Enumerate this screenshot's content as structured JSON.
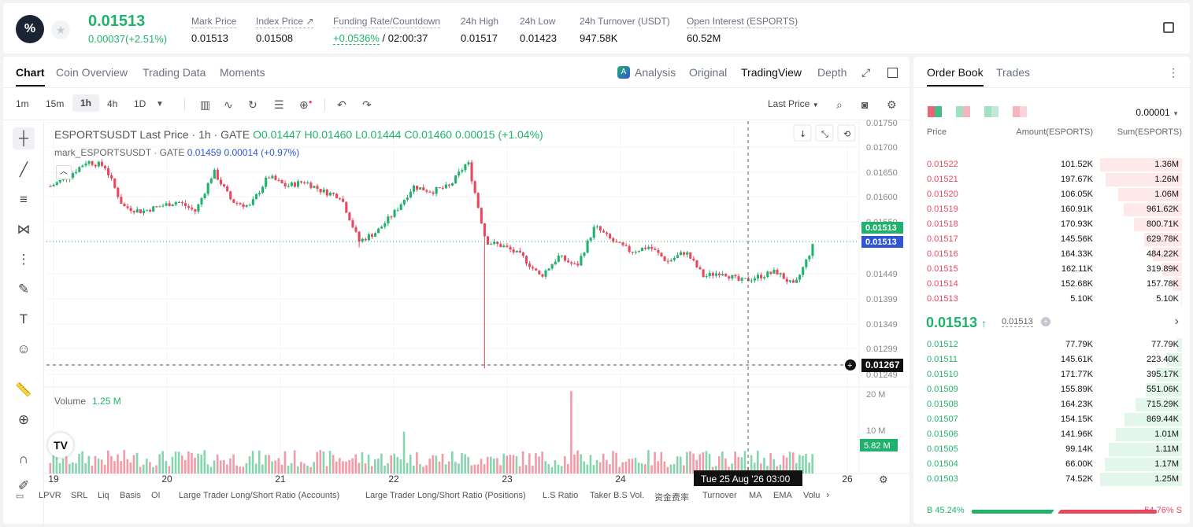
{
  "header": {
    "last_price": "0.01513",
    "change": "0.00037(+2.51%)",
    "stats": [
      {
        "label": "Mark Price",
        "value": "0.01513"
      },
      {
        "label": "Index Price ↗",
        "value": "0.01508"
      },
      {
        "label": "Funding Rate/Countdown",
        "value_green": "+0.0536%",
        "value": " / 02:00:37"
      },
      {
        "label": "24h High",
        "value": "0.01517"
      },
      {
        "label": "24h Low",
        "value": "0.01423"
      },
      {
        "label": "24h Turnover (USDT)",
        "value": "947.58K"
      },
      {
        "label": "Open Interest (ESPORTS)",
        "value": "60.52M"
      }
    ]
  },
  "chart_tabs": [
    "Chart",
    "Coin Overview",
    "Trading Data",
    "Moments"
  ],
  "chart_modes": {
    "analysis": "Analysis",
    "original": "Original",
    "tradingview": "TradingView",
    "depth": "Depth"
  },
  "timeframes": [
    "1m",
    "15m",
    "1h",
    "4h",
    "1D"
  ],
  "price_type": "Last Price",
  "legend": {
    "title": "ESPORTSUSDT Last Price · 1h · GATE",
    "o": "O0.01447",
    "h": "H0.01460",
    "l": "L0.01444",
    "c": "C0.01460",
    "chg": "0.00015 (+1.04%)",
    "mark_title": "mark_ESPORTSUSDT · GATE",
    "mark_val": "0.01459",
    "mark_chg": "0.00014 (+0.97%)"
  },
  "volume": {
    "label": "Volume",
    "value": "1.25 M"
  },
  "chart_data": {
    "type": "candlestick",
    "title": "ESPORTSUSDT Last Price · 1h · GATE",
    "y_ticks": [
      "0.01750",
      "0.01700",
      "0.01650",
      "0.01600",
      "0.01550",
      "0.01449",
      "0.01399",
      "0.01349",
      "0.01299",
      "0.01249"
    ],
    "y_labels": {
      "last": "0.01513",
      "mark": "0.01513",
      "crosshair": "0.01267"
    },
    "x_ticks": [
      "19",
      "20",
      "21",
      "22",
      "23",
      "24",
      "25",
      "26"
    ],
    "x_tooltip": "Tue 25 Aug '26   03:00",
    "volume_ticks": [
      "20 M",
      "10 M"
    ],
    "volume_current": "5.82 M",
    "ylim": [
      0.0123,
      0.0176
    ],
    "trend": [
      0.0163,
      0.0165,
      0.0168,
      0.0167,
      0.0159,
      0.0158,
      0.0159,
      0.016,
      0.0158,
      0.0166,
      0.016,
      0.0159,
      0.0165,
      0.0163,
      0.0164,
      0.0162,
      0.0161,
      0.0152,
      0.0154,
      0.0158,
      0.0163,
      0.0162,
      0.0163,
      0.0168,
      0.0152,
      0.0151,
      0.0149,
      0.0145,
      0.0149,
      0.0147,
      0.0155,
      0.0152,
      0.015,
      0.0151,
      0.0148,
      0.015,
      0.0145,
      0.0146,
      0.0144,
      0.0145,
      0.0146,
      0.0143,
      0.0151
    ],
    "spikes": [
      {
        "index": 24,
        "low": 0.01267
      },
      {
        "index": 17,
        "low": 0.01508
      }
    ]
  },
  "bottom_indicators": [
    "LPVR",
    "SRL",
    "Liq",
    "Basis",
    "OI",
    "Large Trader Long/Short Ratio (Accounts)",
    "Large Trader Long/Short Ratio (Positions)",
    "L.S Ratio",
    "Taker B.S Vol.",
    "资金费率",
    "Turnover",
    "MA",
    "EMA",
    "Volu"
  ],
  "orderbook": {
    "tabs": [
      "Order Book",
      "Trades"
    ],
    "precision": "0.00001",
    "headers": {
      "price": "Price",
      "amount": "Amount(ESPORTS)",
      "sum": "Sum(ESPORTS)"
    },
    "asks": [
      {
        "price": "0.01522",
        "amount": "101.52K",
        "sum": "1.36M",
        "fill": 1.0
      },
      {
        "price": "0.01521",
        "amount": "197.67K",
        "sum": "1.26M",
        "fill": 0.93
      },
      {
        "price": "0.01520",
        "amount": "106.05K",
        "sum": "1.06M",
        "fill": 0.78
      },
      {
        "price": "0.01519",
        "amount": "160.91K",
        "sum": "961.62K",
        "fill": 0.71
      },
      {
        "price": "0.01518",
        "amount": "170.93K",
        "sum": "800.71K",
        "fill": 0.59
      },
      {
        "price": "0.01517",
        "amount": "145.56K",
        "sum": "629.78K",
        "fill": 0.46
      },
      {
        "price": "0.01516",
        "amount": "164.33K",
        "sum": "484.22K",
        "fill": 0.36
      },
      {
        "price": "0.01515",
        "amount": "162.11K",
        "sum": "319.89K",
        "fill": 0.24
      },
      {
        "price": "0.01514",
        "amount": "152.68K",
        "sum": "157.78K",
        "fill": 0.12
      },
      {
        "price": "0.01513",
        "amount": "5.10K",
        "sum": "5.10K",
        "fill": 0.01
      }
    ],
    "mid": {
      "price": "0.01513",
      "arrow": "↑",
      "mark": "0.01513"
    },
    "bids": [
      {
        "price": "0.01512",
        "amount": "77.79K",
        "sum": "77.79K",
        "fill": 0.06
      },
      {
        "price": "0.01511",
        "amount": "145.61K",
        "sum": "223.40K",
        "fill": 0.18
      },
      {
        "price": "0.01510",
        "amount": "171.77K",
        "sum": "395.17K",
        "fill": 0.32
      },
      {
        "price": "0.01509",
        "amount": "155.89K",
        "sum": "551.06K",
        "fill": 0.44
      },
      {
        "price": "0.01508",
        "amount": "164.23K",
        "sum": "715.29K",
        "fill": 0.57
      },
      {
        "price": "0.01507",
        "amount": "154.15K",
        "sum": "869.44K",
        "fill": 0.7
      },
      {
        "price": "0.01506",
        "amount": "141.96K",
        "sum": "1.01M",
        "fill": 0.81
      },
      {
        "price": "0.01505",
        "amount": "99.14K",
        "sum": "1.11M",
        "fill": 0.89
      },
      {
        "price": "0.01504",
        "amount": "66.00K",
        "sum": "1.17M",
        "fill": 0.94
      },
      {
        "price": "0.01503",
        "amount": "74.52K",
        "sum": "1.25M",
        "fill": 1.0
      }
    ],
    "buy_ratio": "B 45.24%",
    "sell_ratio": "54.76% S",
    "buy_fraction": 0.4524
  },
  "colors": {
    "up": "#20b26c",
    "down": "#e8475e",
    "accent": "#2f55d4"
  }
}
